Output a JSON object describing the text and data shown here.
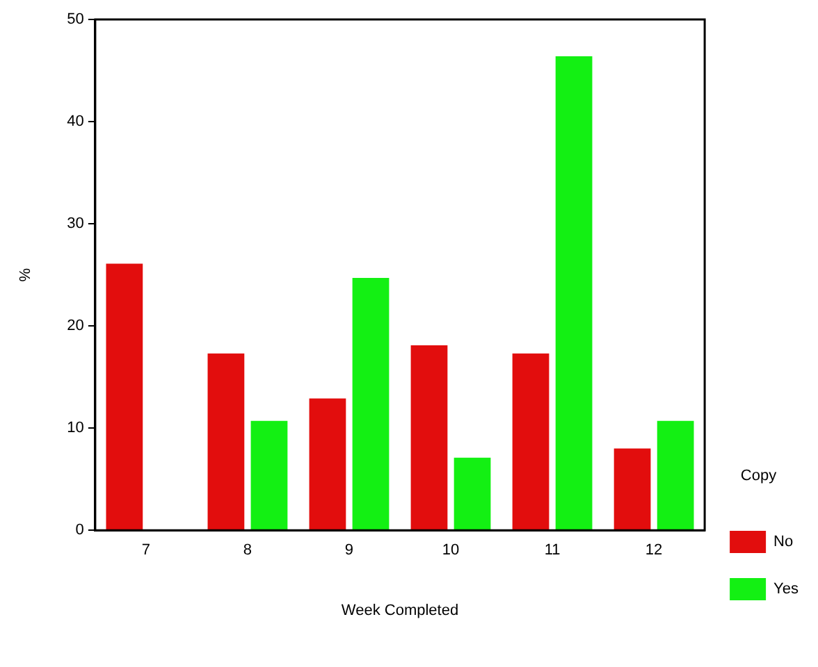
{
  "chart_data": {
    "type": "bar",
    "xlabel": "Week Completed",
    "ylabel": "%",
    "legend_title": "Copy",
    "categories": [
      "7",
      "8",
      "9",
      "10",
      "11",
      "12"
    ],
    "series": [
      {
        "name": "No",
        "color": "#e20d0d",
        "values": [
          26.1,
          17.3,
          12.9,
          18.1,
          17.3,
          8.0
        ]
      },
      {
        "name": "Yes",
        "color": "#13f013",
        "values": [
          0,
          10.7,
          24.7,
          7.1,
          46.4,
          10.7
        ]
      }
    ],
    "ylim": [
      0,
      50
    ],
    "yticks": [
      0,
      10,
      20,
      30,
      40,
      50
    ],
    "grid": false,
    "legend": "right"
  }
}
